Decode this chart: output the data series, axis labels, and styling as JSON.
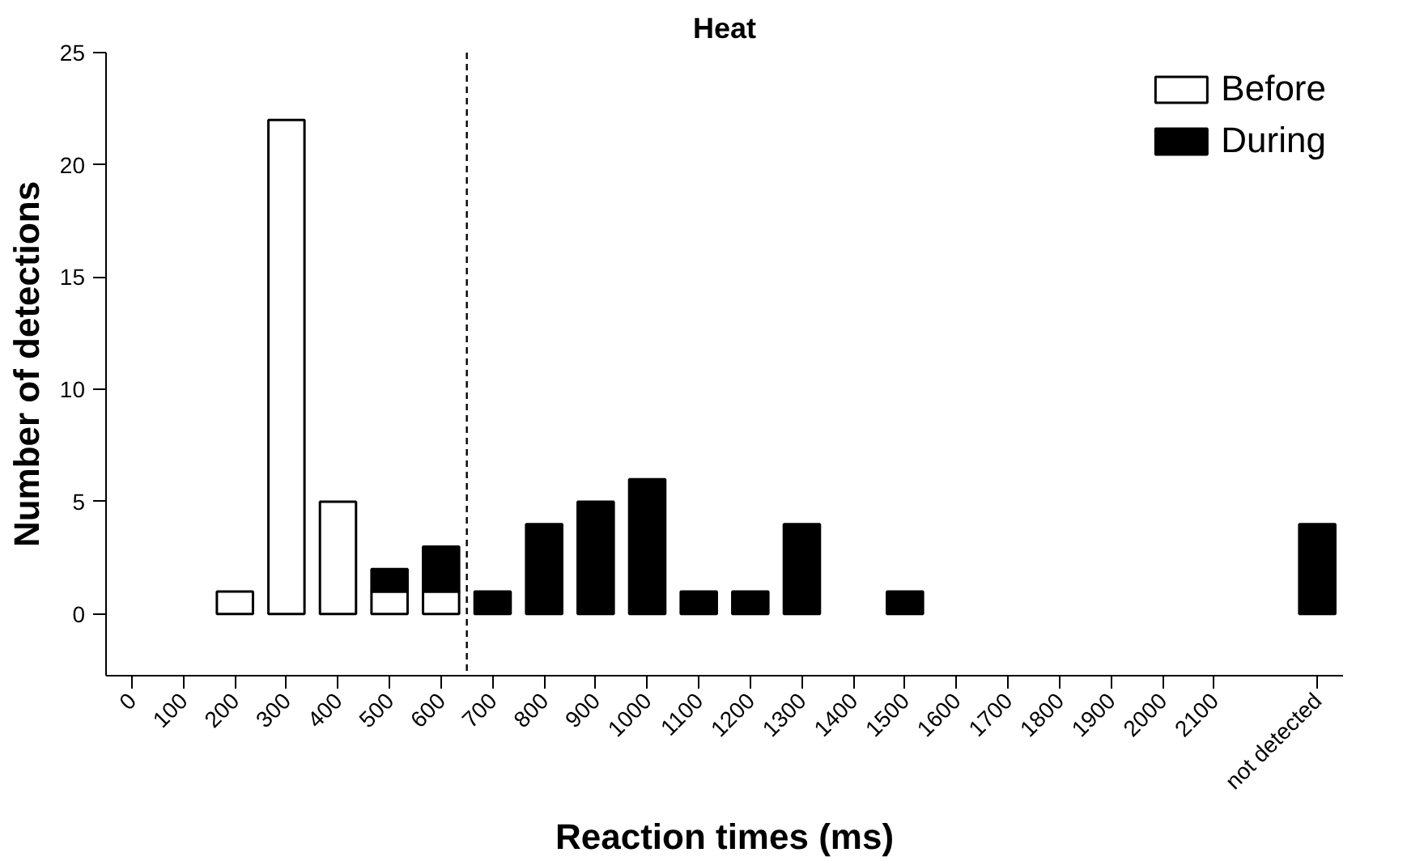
{
  "chart_data": {
    "type": "bar",
    "title": "Heat",
    "xlabel": "Reaction times (ms)",
    "ylabel": "Number of detections",
    "x": [
      200,
      300,
      400,
      500,
      600,
      700,
      800,
      900,
      1000,
      1100,
      1200,
      1300,
      1500,
      2300
    ],
    "stacked": true,
    "series": [
      {
        "name": "Before",
        "color": "#ffffff",
        "values": [
          1,
          22,
          5,
          1,
          1,
          0,
          0,
          0,
          0,
          0,
          0,
          0,
          0,
          0
        ]
      },
      {
        "name": "During",
        "color": "#000000",
        "values": [
          0,
          0,
          0,
          1,
          2,
          1,
          4,
          5,
          6,
          1,
          1,
          4,
          1,
          4
        ]
      }
    ],
    "xlim": [
      -50,
      2350
    ],
    "xticks": [
      0,
      100,
      200,
      300,
      400,
      500,
      600,
      700,
      800,
      900,
      1000,
      1100,
      1200,
      1300,
      1400,
      1500,
      1600,
      1700,
      1800,
      1900,
      2000,
      2100,
      {
        "value": 2300,
        "label": "not detected"
      }
    ],
    "ylim": [
      -2.75,
      25
    ],
    "yticks": [
      0,
      5,
      10,
      15,
      20,
      25
    ],
    "ref_lines": [
      {
        "axis": "x",
        "value": 650,
        "line_style": "dashed",
        "color": "#000000"
      }
    ],
    "grid": false,
    "legend": "top right"
  }
}
